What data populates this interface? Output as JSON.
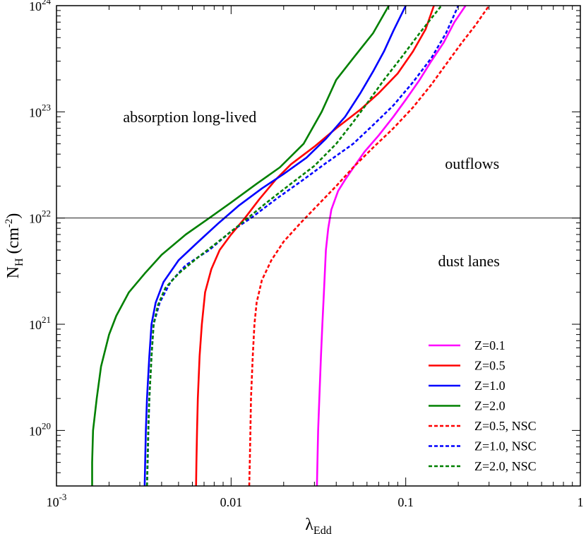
{
  "chart_data": {
    "type": "line",
    "xlabel": "λ",
    "xlabel_sub": "Edd",
    "ylabel": "N",
    "ylabel_sub": "H",
    "ylabel_unit": "(cm",
    "ylabel_unit_sup": "-2",
    "ylabel_unit_close": ")",
    "x_scale": "log",
    "y_scale": "log",
    "xlim": [
      0.001,
      1
    ],
    "ylim": [
      3e+19,
      1e+24
    ],
    "grid": false,
    "legend_position": "bottom-right",
    "x_ticks": [
      {
        "value": 0.001,
        "base": "10",
        "exp": "-3"
      },
      {
        "value": 0.01,
        "label": "0.01"
      },
      {
        "value": 0.1,
        "label": "0.1"
      },
      {
        "value": 1,
        "label": "1"
      }
    ],
    "y_ticks": [
      {
        "value": 1e+20,
        "base": "10",
        "exp": "20"
      },
      {
        "value": 1e+21,
        "base": "10",
        "exp": "21"
      },
      {
        "value": 1e+22,
        "base": "10",
        "exp": "22"
      },
      {
        "value": 1e+23,
        "base": "10",
        "exp": "23"
      },
      {
        "value": 1e+24,
        "base": "10",
        "exp": "24"
      }
    ],
    "reference_line": {
      "y": 1e+22
    },
    "annotations": [
      {
        "text": "absorption long-lived",
        "x": 0.0058,
        "y": 8e+22
      },
      {
        "text": "outflows",
        "x": 0.24,
        "y": 2.9e+22
      },
      {
        "text": "dust lanes",
        "x": 0.23,
        "y": 3.5e+21
      }
    ],
    "series": [
      {
        "name": "Z=0.1",
        "color": "#ff00ff",
        "dash": false,
        "points": [
          [
            0.031,
            3e+19
          ],
          [
            0.0312,
            5e+19
          ],
          [
            0.0315,
            1e+20
          ],
          [
            0.032,
            2e+20
          ],
          [
            0.0327,
            5e+20
          ],
          [
            0.0333,
            1e+21
          ],
          [
            0.034,
            2e+21
          ],
          [
            0.0349,
            5e+21
          ],
          [
            0.036,
            8e+21
          ],
          [
            0.0375,
            1.2e+22
          ],
          [
            0.041,
            1.8e+22
          ],
          [
            0.045,
            2.3e+22
          ],
          [
            0.051,
            3.1e+22
          ],
          [
            0.058,
            4.2e+22
          ],
          [
            0.07,
            6e+22
          ],
          [
            0.085,
            9e+22
          ],
          [
            0.1,
            1.3e+23
          ],
          [
            0.12,
            2e+23
          ],
          [
            0.14,
            3e+23
          ],
          [
            0.165,
            4.5e+23
          ],
          [
            0.19,
            7e+23
          ],
          [
            0.22,
            1e+24
          ]
        ]
      },
      {
        "name": "Z=0.5",
        "color": "#ff0000",
        "dash": false,
        "points": [
          [
            0.0063,
            3e+19
          ],
          [
            0.00633,
            5e+19
          ],
          [
            0.00638,
            1e+20
          ],
          [
            0.00645,
            2e+20
          ],
          [
            0.0066,
            5e+20
          ],
          [
            0.0068,
            1e+21
          ],
          [
            0.0071,
            2e+21
          ],
          [
            0.0077,
            3.3e+21
          ],
          [
            0.0086,
            5e+21
          ],
          [
            0.01,
            7e+21
          ],
          [
            0.012,
            1e+22
          ],
          [
            0.0145,
            1.5e+22
          ],
          [
            0.018,
            2.3e+22
          ],
          [
            0.022,
            3.2e+22
          ],
          [
            0.03,
            4.7e+22
          ],
          [
            0.04,
            7e+22
          ],
          [
            0.055,
            1.05e+23
          ],
          [
            0.07,
            1.5e+23
          ],
          [
            0.09,
            2.3e+23
          ],
          [
            0.11,
            3.7e+23
          ],
          [
            0.13,
            6e+23
          ],
          [
            0.145,
            1e+24
          ]
        ]
      },
      {
        "name": "Z=1.0",
        "color": "#0000ff",
        "dash": false,
        "points": [
          [
            0.0032,
            3e+19
          ],
          [
            0.00322,
            5e+19
          ],
          [
            0.00325,
            1e+20
          ],
          [
            0.0033,
            2e+20
          ],
          [
            0.0034,
            5e+20
          ],
          [
            0.0035,
            1e+21
          ],
          [
            0.0037,
            1.6e+21
          ],
          [
            0.0041,
            2.5e+21
          ],
          [
            0.005,
            4e+21
          ],
          [
            0.0065,
            6e+21
          ],
          [
            0.0085,
            9e+21
          ],
          [
            0.011,
            1.3e+22
          ],
          [
            0.015,
            1.9e+22
          ],
          [
            0.02,
            2.6e+22
          ],
          [
            0.027,
            3.7e+22
          ],
          [
            0.035,
            5.6e+22
          ],
          [
            0.045,
            9e+22
          ],
          [
            0.055,
            1.5e+23
          ],
          [
            0.065,
            2.4e+23
          ],
          [
            0.075,
            3.7e+23
          ],
          [
            0.085,
            5.8e+23
          ],
          [
            0.1,
            1e+24
          ]
        ]
      },
      {
        "name": "Z=2.0",
        "color": "#008000",
        "dash": false,
        "points": [
          [
            0.0016,
            3e+19
          ],
          [
            0.0016,
            5e+19
          ],
          [
            0.00162,
            1e+20
          ],
          [
            0.0017,
            2e+20
          ],
          [
            0.0018,
            4e+20
          ],
          [
            0.002,
            8e+20
          ],
          [
            0.0022,
            1.2e+21
          ],
          [
            0.0026,
            2e+21
          ],
          [
            0.0032,
            3e+21
          ],
          [
            0.004,
            4.5e+21
          ],
          [
            0.0055,
            7e+21
          ],
          [
            0.0075,
            1e+22
          ],
          [
            0.01,
            1.4e+22
          ],
          [
            0.014,
            2.1e+22
          ],
          [
            0.019,
            3e+22
          ],
          [
            0.026,
            5e+22
          ],
          [
            0.033,
            1e+23
          ],
          [
            0.04,
            2e+23
          ],
          [
            0.05,
            3.2e+23
          ],
          [
            0.065,
            5.5e+23
          ],
          [
            0.08,
            1e+24
          ]
        ]
      },
      {
        "name": "Z=0.5, NSC",
        "color": "#ff0000",
        "dash": true,
        "points": [
          [
            0.0127,
            3e+19
          ],
          [
            0.0128,
            5e+19
          ],
          [
            0.0129,
            1e+20
          ],
          [
            0.013,
            2e+20
          ],
          [
            0.0133,
            5e+20
          ],
          [
            0.0136,
            1e+21
          ],
          [
            0.014,
            1.6e+21
          ],
          [
            0.015,
            2.6e+21
          ],
          [
            0.017,
            4e+21
          ],
          [
            0.02,
            6e+21
          ],
          [
            0.025,
            9e+21
          ],
          [
            0.031,
            1.3e+22
          ],
          [
            0.04,
            2e+22
          ],
          [
            0.05,
            3e+22
          ],
          [
            0.065,
            4.6e+22
          ],
          [
            0.085,
            7e+22
          ],
          [
            0.11,
            1.1e+23
          ],
          [
            0.14,
            1.8e+23
          ],
          [
            0.17,
            2.8e+23
          ],
          [
            0.21,
            4.5e+23
          ],
          [
            0.25,
            6.5e+23
          ],
          [
            0.3,
            1e+24
          ]
        ]
      },
      {
        "name": "Z=1.0, NSC",
        "color": "#0000ff",
        "dash": true,
        "points": [
          [
            0.0033,
            3e+19
          ],
          [
            0.00333,
            5e+19
          ],
          [
            0.00336,
            1e+20
          ],
          [
            0.0034,
            2e+20
          ],
          [
            0.0035,
            5e+20
          ],
          [
            0.0036,
            1e+21
          ],
          [
            0.0039,
            1.6e+21
          ],
          [
            0.0045,
            2.5e+21
          ],
          [
            0.0055,
            3.6e+21
          ],
          [
            0.0075,
            5e+21
          ],
          [
            0.01,
            7.5e+21
          ],
          [
            0.013,
            1e+22
          ],
          [
            0.018,
            1.5e+22
          ],
          [
            0.025,
            2.2e+22
          ],
          [
            0.035,
            3.3e+22
          ],
          [
            0.05,
            5e+22
          ],
          [
            0.065,
            7.5e+22
          ],
          [
            0.085,
            1.15e+23
          ],
          [
            0.11,
            1.9e+23
          ],
          [
            0.14,
            3.2e+23
          ],
          [
            0.17,
            5.5e+23
          ],
          [
            0.2,
            1e+24
          ]
        ]
      },
      {
        "name": "Z=2.0, NSC",
        "color": "#008000",
        "dash": true,
        "points": [
          [
            0.0033,
            3e+19
          ],
          [
            0.00332,
            5e+19
          ],
          [
            0.00335,
            1e+20
          ],
          [
            0.0034,
            2e+20
          ],
          [
            0.0035,
            5e+20
          ],
          [
            0.0036,
            1e+21
          ],
          [
            0.0038,
            1.5e+21
          ],
          [
            0.0042,
            2.2e+21
          ],
          [
            0.005,
            3e+21
          ],
          [
            0.0065,
            4.3e+21
          ],
          [
            0.009,
            6.5e+21
          ],
          [
            0.012,
            9.5e+21
          ],
          [
            0.016,
            1.4e+22
          ],
          [
            0.022,
            2.1e+22
          ],
          [
            0.03,
            3.1e+22
          ],
          [
            0.04,
            5e+22
          ],
          [
            0.05,
            8e+22
          ],
          [
            0.06,
            1.2e+23
          ],
          [
            0.075,
            2e+23
          ],
          [
            0.095,
            3.3e+23
          ],
          [
            0.12,
            5.5e+23
          ],
          [
            0.16,
            1e+24
          ]
        ]
      }
    ]
  }
}
